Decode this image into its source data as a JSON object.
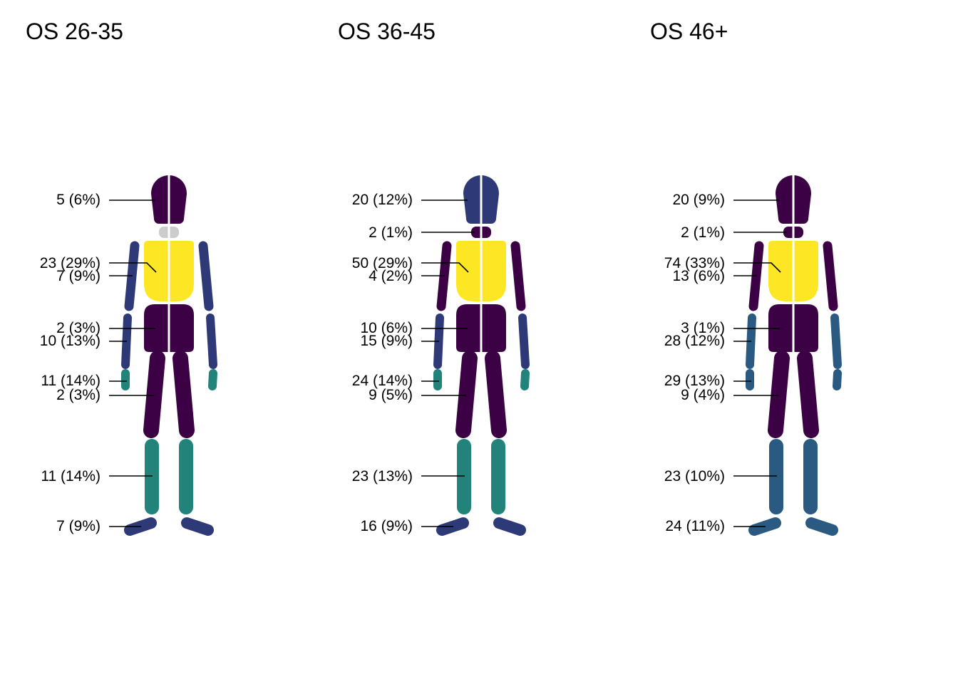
{
  "chart_data": {
    "type": "body-map",
    "regions": [
      "head",
      "neck",
      "chest_back",
      "upper_arm",
      "abdomen_pelvis",
      "forearm",
      "hand",
      "thigh",
      "lower_leg",
      "foot"
    ],
    "panels": [
      {
        "title": "OS 26-35",
        "labels": {
          "head": "5 (6%)",
          "neck": null,
          "chest_back": "23 (29%)",
          "upper_arm": "7 (9%)",
          "abdomen_pelvis": "2 (3%)",
          "forearm": "10 (13%)",
          "hand": "11 (14%)",
          "thigh": "2 (3%)",
          "lower_leg": "11 (14%)",
          "foot": "7 (9%)"
        },
        "percent": {
          "head": 6,
          "neck": null,
          "chest_back": 29,
          "upper_arm": 9,
          "abdomen_pelvis": 3,
          "forearm": 13,
          "hand": 14,
          "thigh": 3,
          "lower_leg": 14,
          "foot": 9
        },
        "colors": {
          "head": "#3b0144",
          "neck": "#cccccc",
          "chest_back": "#fde725",
          "upper_arm": "#2e3a78",
          "abdomen_pelvis": "#3b0144",
          "forearm": "#2e3a78",
          "hand": "#218379",
          "thigh": "#3b0144",
          "lower_leg": "#218379",
          "foot": "#2e3a78"
        }
      },
      {
        "title": "OS 36-45",
        "labels": {
          "head": "20 (12%)",
          "neck": "2 (1%)",
          "chest_back": "50 (29%)",
          "upper_arm": "4 (2%)",
          "abdomen_pelvis": "10 (6%)",
          "forearm": "15 (9%)",
          "hand": "24 (14%)",
          "thigh": "9 (5%)",
          "lower_leg": "23 (13%)",
          "foot": "16 (9%)"
        },
        "percent": {
          "head": 12,
          "neck": 1,
          "chest_back": 29,
          "upper_arm": 2,
          "abdomen_pelvis": 6,
          "forearm": 9,
          "hand": 14,
          "thigh": 5,
          "lower_leg": 13,
          "foot": 9
        },
        "colors": {
          "head": "#2e3a78",
          "neck": "#3b0144",
          "chest_back": "#fde725",
          "upper_arm": "#3b0144",
          "abdomen_pelvis": "#3b0144",
          "forearm": "#2e3a78",
          "hand": "#218379",
          "thigh": "#3b0144",
          "lower_leg": "#218379",
          "foot": "#2e3a78"
        }
      },
      {
        "title": "OS 46+",
        "labels": {
          "head": "20 (9%)",
          "neck": "2 (1%)",
          "chest_back": "74 (33%)",
          "upper_arm": "13 (6%)",
          "abdomen_pelvis": "3 (1%)",
          "forearm": "28 (12%)",
          "hand": "29 (13%)",
          "thigh": "9 (4%)",
          "lower_leg": "23 (10%)",
          "foot": "24 (11%)"
        },
        "percent": {
          "head": 9,
          "neck": 1,
          "chest_back": 33,
          "upper_arm": 6,
          "abdomen_pelvis": 1,
          "forearm": 12,
          "hand": 13,
          "thigh": 4,
          "lower_leg": 10,
          "foot": 11
        },
        "colors": {
          "head": "#3b0144",
          "neck": "#3b0144",
          "chest_back": "#fde725",
          "upper_arm": "#3b0144",
          "abdomen_pelvis": "#3b0144",
          "forearm": "#2a5a82",
          "hand": "#2a5a82",
          "thigh": "#3b0144",
          "lower_leg": "#2a5a82",
          "foot": "#2a5a82"
        }
      }
    ]
  }
}
